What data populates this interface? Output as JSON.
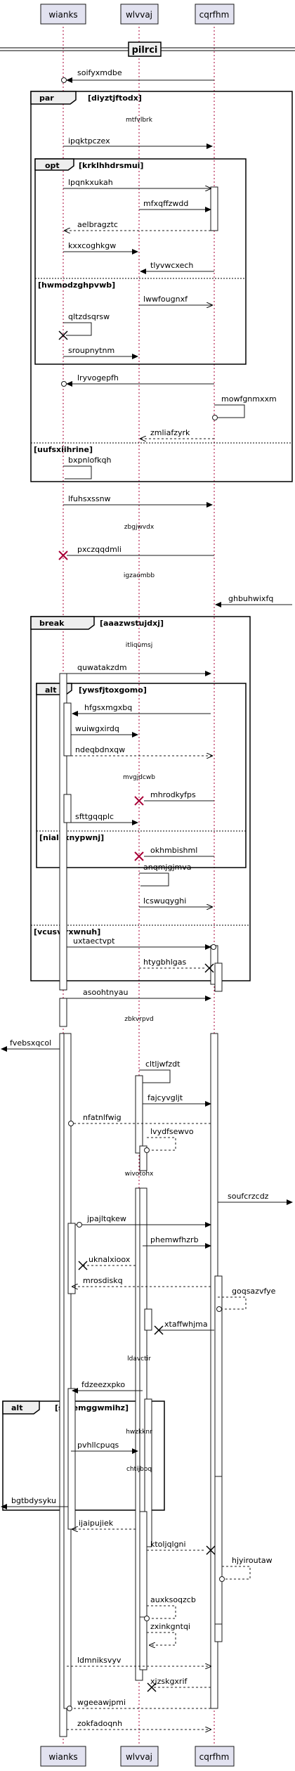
{
  "participants": [
    {
      "id": "wianks",
      "label": "wianks"
    },
    {
      "id": "wlvvaj",
      "label": "wlvvaj"
    },
    {
      "id": "cqrfhm",
      "label": "cqrfhm"
    }
  ],
  "title_box": "pilrci",
  "fragments": [
    {
      "kind": "par",
      "guard": "[diyztjftodx]"
    },
    {
      "kind": "opt",
      "guard": "[krklhhdrsmui]"
    },
    {
      "kind": "",
      "guard": "[hwmodzghpvwb]"
    },
    {
      "kind": "",
      "guard": "[uufsxiihrine]"
    },
    {
      "kind": "break",
      "guard": "[aaazwstujdxj]"
    },
    {
      "kind": "alt",
      "guard": "[ywsfjtoxgomo]"
    },
    {
      "kind": "",
      "guard": "[nialoxnypwnj]"
    },
    {
      "kind": "",
      "guard": "[vcusvirxwnuh]"
    },
    {
      "kind": "alt",
      "guard": "[scoemggwmihz]"
    }
  ],
  "notes": [
    "mtfvlbrk",
    "zbgjwvdx",
    "igzaombb",
    "itliqumsj",
    "mvgjdcwb",
    "zbkvrpvd",
    "wivotohx",
    "ldavctir",
    "hwzkknr",
    "chtijboq"
  ],
  "messages": [
    "soifyxmdbe",
    "ipqktpczex",
    "lpqnkxukah",
    "mfxqffzwdd",
    "aelbragztc",
    "kxxcoghkgw",
    "tlyvwcxech",
    "lwwfougnxf",
    "qltzdsqrsw",
    "sroupnytnm",
    "lryvogepfh",
    "mowfgnmxxm",
    "zmliafzyrk",
    "bxpnlofkqh",
    "lfuhsxssnw",
    "pxczqqdmli",
    "ghbuhwixfq",
    "quwatakzdm",
    "hfgsxmgxbq",
    "wuiwgxirdq",
    "ndeqbdnxqw",
    "mhrodkyfps",
    "sfttgqqplc",
    "okhmbishml",
    "anqmjgjmva",
    "lcswuqyghi",
    "uxtaectvpt",
    "htygbhlgas",
    "asoohtnyau",
    "fvebsxqcol",
    "cltljwfzdt",
    "fajcyvgljt",
    "nfatnlfwig",
    "lvydfsewvo",
    "soufcrzcdz",
    "jpajltqkew",
    "phemwfhzrb",
    "uknalxioox",
    "mrosdiskq",
    "goqsazvfye",
    "xtaffwhjma",
    "fdzeezxpko",
    "pvhllcpuqs",
    "bgtbdysyku",
    "ijaipujiek",
    "ktoljqlgni",
    "hjyiroutaw",
    "auxksoqzcb",
    "zxinkgntqi",
    "ldmniksvyv",
    "xjzskgxrif",
    "wgeeawjpmi",
    "zokfadoqnh"
  ]
}
